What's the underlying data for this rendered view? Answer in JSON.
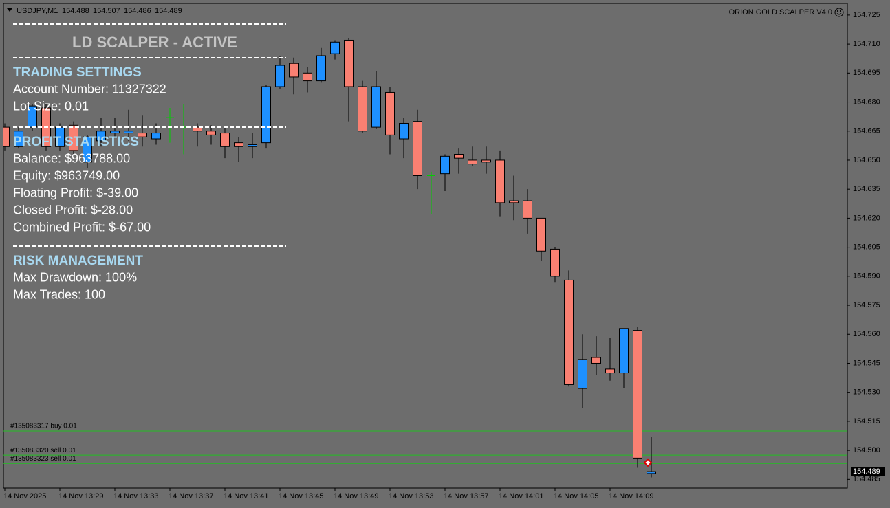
{
  "chart_data": {
    "type": "candlestick",
    "symbol": "USDJPY,M1",
    "indicator": "ORION GOLD SCALPER V4.0",
    "categories": [
      "14 Nov 2025",
      null,
      null,
      null,
      "14 Nov 13:29",
      null,
      null,
      null,
      "14 Nov 13:33",
      null,
      null,
      null,
      "14 Nov 13:37",
      null,
      null,
      null,
      "14 Nov 13:41",
      null,
      null,
      null,
      "14 Nov 13:45",
      null,
      null,
      null,
      "14 Nov 13:49",
      null,
      null,
      null,
      "14 Nov 13:53",
      null,
      null,
      null,
      "14 Nov 13:57",
      null,
      null,
      null,
      "14 Nov 14:01",
      null,
      null,
      null,
      "14 Nov 14:05",
      null,
      null,
      null,
      "14 Nov 14:09",
      null,
      null,
      null
    ],
    "open": [
      154.667,
      154.657,
      154.667,
      154.677,
      154.657,
      154.668,
      154.649,
      154.66,
      154.664,
      154.664,
      154.664,
      154.661,
      154.672,
      154.667,
      154.667,
      154.665,
      154.664,
      154.659,
      154.657,
      154.659,
      154.688,
      154.7,
      154.695,
      154.691,
      154.705,
      154.712,
      154.688,
      154.667,
      154.685,
      154.661,
      154.67,
      154.642,
      154.643,
      154.653,
      154.65,
      154.65,
      154.65,
      154.629,
      154.629,
      154.62,
      154.604,
      154.588,
      154.532,
      154.548,
      154.542,
      154.54,
      154.562,
      154.488
    ],
    "high": [
      154.669,
      154.667,
      154.679,
      154.679,
      154.669,
      154.67,
      154.663,
      154.672,
      154.672,
      154.676,
      154.673,
      154.669,
      154.677,
      154.679,
      154.669,
      154.668,
      154.667,
      154.662,
      154.664,
      154.689,
      154.704,
      154.703,
      154.698,
      154.708,
      154.712,
      154.713,
      154.691,
      154.696,
      154.688,
      154.672,
      154.676,
      154.644,
      154.653,
      154.656,
      154.657,
      154.657,
      154.655,
      154.642,
      154.635,
      154.62,
      154.605,
      154.593,
      154.56,
      154.559,
      154.558,
      154.563,
      154.564,
      154.507
    ],
    "low": [
      154.655,
      154.656,
      154.665,
      154.655,
      154.655,
      154.652,
      154.646,
      154.657,
      154.662,
      154.66,
      154.657,
      154.658,
      154.659,
      154.653,
      154.657,
      154.658,
      154.651,
      154.649,
      154.651,
      154.656,
      154.687,
      154.684,
      154.685,
      154.69,
      154.702,
      154.67,
      154.664,
      154.666,
      154.653,
      154.651,
      154.635,
      154.622,
      154.634,
      154.643,
      154.647,
      154.643,
      154.621,
      154.619,
      154.612,
      154.598,
      154.587,
      154.533,
      154.522,
      154.539,
      154.536,
      154.532,
      154.491,
      154.486
    ],
    "close": [
      154.657,
      154.665,
      154.678,
      154.657,
      154.667,
      154.655,
      154.662,
      154.665,
      154.665,
      154.665,
      154.662,
      154.664,
      154.672,
      154.667,
      154.665,
      154.663,
      154.657,
      154.657,
      154.658,
      154.688,
      154.699,
      154.693,
      154.691,
      154.704,
      154.711,
      154.688,
      154.665,
      154.688,
      154.663,
      154.669,
      154.642,
      154.642,
      154.652,
      154.651,
      154.648,
      154.649,
      154.628,
      154.628,
      154.62,
      154.603,
      154.59,
      154.534,
      154.547,
      154.545,
      154.54,
      154.563,
      154.496,
      154.489
    ],
    "up_color": "#1e90ff",
    "down_color": "#fa8072",
    "doji_color": "#00d000",
    "ylim": [
      154.4805,
      154.731
    ],
    "yticks": [
      154.725,
      {
        "value": 154.71,
        "label": "154.710"
      },
      154.695,
      {
        "value": 154.68,
        "label": "154.680"
      },
      154.665,
      {
        "value": 154.65,
        "label": "154.650"
      },
      154.635,
      {
        "value": 154.62,
        "label": "154.620"
      },
      154.605,
      {
        "value": 154.59,
        "label": "154.590"
      },
      154.575,
      {
        "value": 154.56,
        "label": "154.560"
      },
      154.545,
      {
        "value": 154.53,
        "label": "154.530"
      },
      154.515,
      {
        "value": 154.5,
        "label": "154.500"
      },
      154.485
    ],
    "order_lines": [
      {
        "label": "#135083317 buy 0.01",
        "value": 154.51
      },
      {
        "label": "#135083320 sell 0.01",
        "value": 154.4975
      },
      {
        "label": "#135083323 sell 0.01",
        "value": 154.4932
      }
    ],
    "order_line_color": "#22c022"
  },
  "overlay": {
    "title": "LD SCALPER - ACTIVE",
    "sections": [
      {
        "heading": "TRADING SETTINGS",
        "lines": [
          "Account Number: 11327322",
          "Lot Size: 0.01"
        ]
      },
      {
        "heading": "PROFIT STATISTICS",
        "lines": [
          "Balance: $963788.00",
          "Equity: $963749.00",
          "Floating Profit: $-39.00",
          "Closed Profit: $-28.00",
          "Combined Profit: $-67.00"
        ]
      },
      {
        "heading": "RISK MANAGEMENT",
        "lines": [
          "Max Drawdown: 100%",
          "Max Trades: 100"
        ]
      }
    ]
  }
}
